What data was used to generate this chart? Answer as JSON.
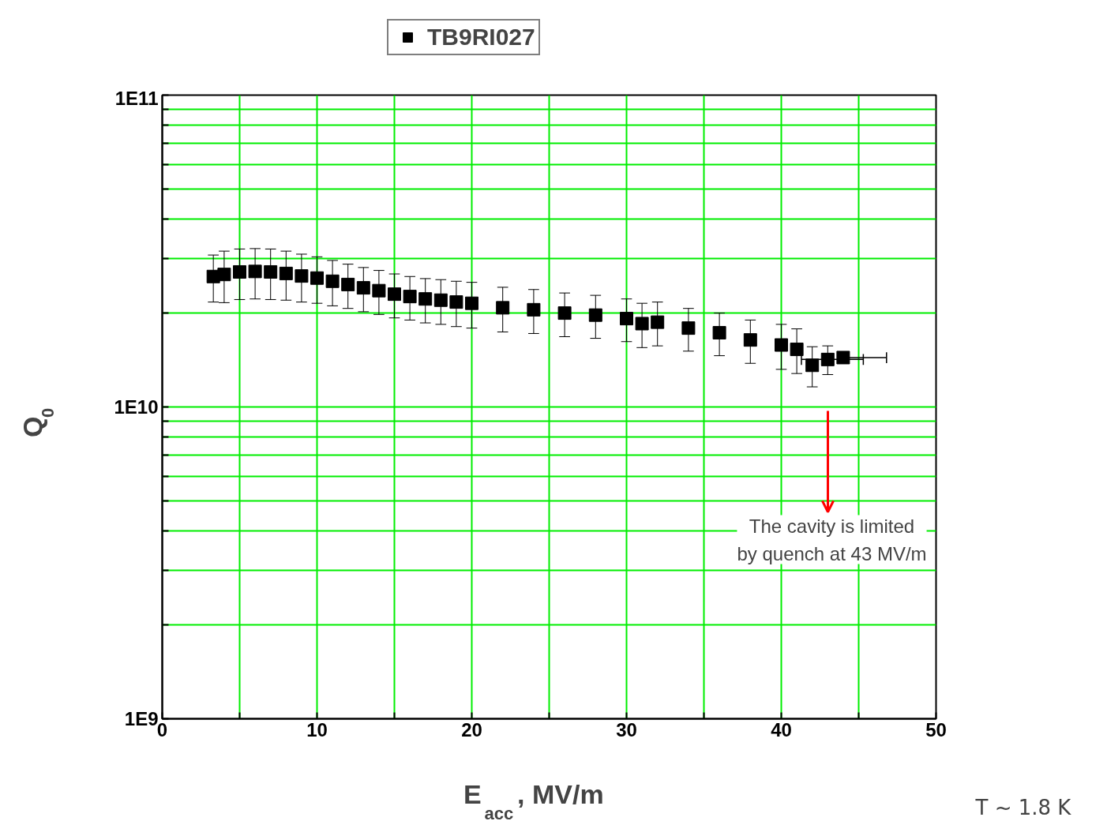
{
  "chart_data": {
    "type": "scatter",
    "xlabel": "E$_{acc}$, MV/m",
    "ylabel": "Q$_{0}$",
    "log": "y",
    "grid": true,
    "legend": "top",
    "marker": "square",
    "xlim": [
      0,
      50
    ],
    "xticks": [
      0,
      {
        "value": 5,
        "label": null
      },
      10,
      {
        "value": 15,
        "label": null
      },
      20,
      {
        "value": 25,
        "label": null
      },
      30,
      {
        "value": 35,
        "label": null
      },
      40,
      {
        "value": 45,
        "label": null
      },
      50
    ],
    "ylim": [
      1000000000.0,
      100000000000.0
    ],
    "yticks": [
      {
        "value": 1000000000.0,
        "label": "1E9"
      },
      {
        "value": 2000000000.0,
        "label": null
      },
      {
        "value": 3000000000.0,
        "label": null
      },
      {
        "value": 4000000000.0,
        "label": null
      },
      {
        "value": 5000000000.0,
        "label": null
      },
      {
        "value": 6000000000.0,
        "label": null
      },
      {
        "value": 7000000000.0,
        "label": null
      },
      {
        "value": 8000000000.0,
        "label": null
      },
      {
        "value": 9000000000.0,
        "label": null
      },
      {
        "value": 10000000000.0,
        "label": "1E10"
      },
      {
        "value": 20000000000.0,
        "label": null
      },
      {
        "value": 30000000000.0,
        "label": null
      },
      {
        "value": 40000000000.0,
        "label": null
      },
      {
        "value": 50000000000.0,
        "label": null
      },
      {
        "value": 60000000000.0,
        "label": null
      },
      {
        "value": 70000000000.0,
        "label": null
      },
      {
        "value": 80000000000.0,
        "label": null
      },
      {
        "value": 90000000000.0,
        "label": null
      },
      {
        "value": 100000000000.0,
        "label": "1E11"
      }
    ],
    "series": [
      {
        "name": "TB9RI027",
        "color": "#000000",
        "x": [
          3.3,
          4,
          5,
          6,
          7,
          8,
          9,
          10,
          11,
          12,
          13,
          14,
          15,
          16,
          17,
          18,
          19,
          20,
          22,
          24,
          26,
          28,
          30,
          31,
          32,
          34,
          36,
          38,
          40,
          41,
          42,
          43,
          44
        ],
        "values": [
          26200000000.0,
          26600000000.0,
          27100000000.0,
          27200000000.0,
          27100000000.0,
          26800000000.0,
          26300000000.0,
          25900000000.0,
          25300000000.0,
          24700000000.0,
          24100000000.0,
          23600000000.0,
          23000000000.0,
          22600000000.0,
          22200000000.0,
          22000000000.0,
          21700000000.0,
          21500000000.0,
          20800000000.0,
          20500000000.0,
          20000000000.0,
          19700000000.0,
          19200000000.0,
          18500000000.0,
          18700000000.0,
          17900000000.0,
          17300000000.0,
          16400000000.0,
          15800000000.0,
          15300000000.0,
          13600000000.0,
          14200000000.0,
          14400000000.0
        ],
        "errors": [
          4500000000.0,
          5000000000.0,
          5000000000.0,
          5000000000.0,
          5000000000.0,
          4800000000.0,
          4600000000.0,
          4400000000.0,
          4200000000.0,
          4000000000.0,
          3900000000.0,
          3800000000.0,
          3700000000.0,
          3600000000.0,
          3600000000.0,
          3600000000.0,
          3600000000.0,
          3600000000.0,
          3400000000.0,
          3300000000.0,
          3200000000.0,
          3100000000.0,
          3000000000.0,
          3000000000.0,
          3000000000.0,
          2800000000.0,
          2700000000.0,
          2600000000.0,
          2600000000.0,
          2500000000.0,
          2000000000.0,
          1500000000.0,
          600000000.0
        ],
        "xerrors": [
          null,
          null,
          null,
          null,
          null,
          null,
          null,
          null,
          null,
          null,
          null,
          null,
          null,
          null,
          null,
          null,
          null,
          null,
          null,
          null,
          null,
          null,
          null,
          null,
          null,
          null,
          null,
          null,
          null,
          null,
          null,
          [
            41.3,
            45.3
          ],
          [
            44,
            46.8
          ]
        ]
      }
    ],
    "annotations": [
      "The cavity is limited\nby quench at 43 MV/m",
      "T ~ 1.8 K"
    ]
  }
}
